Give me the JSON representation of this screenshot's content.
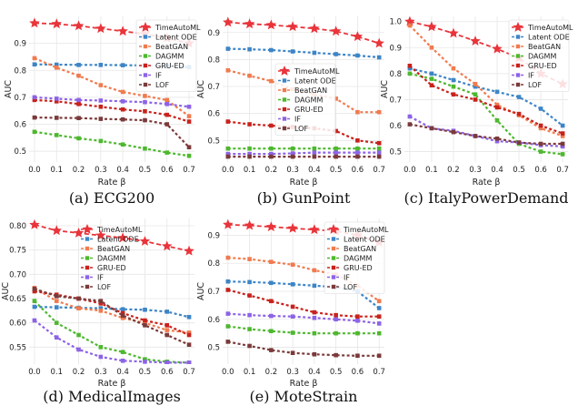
{
  "figure": {
    "colors": {
      "TimeAutoML": "#e8343a",
      "Latent ODE": "#3d85c6",
      "BeatGAN": "#f07b4f",
      "DAGMM": "#4db82e",
      "GRU-ED": "#c8221c",
      "IF": "#8c63e6",
      "LOF": "#7b3a3a"
    }
  },
  "chart_data": [
    {
      "type": "line",
      "caption": "(a) ECG200",
      "xlabel": "Rate β",
      "ylabel": "AUC",
      "x": [
        0.0,
        0.1,
        0.2,
        0.3,
        0.4,
        0.5,
        0.6,
        0.7
      ],
      "xticks": [
        "0.0",
        "0.1",
        "0.2",
        "0.3",
        "0.4",
        "0.5",
        "0.6",
        "0.7"
      ],
      "ylim": [
        0.46,
        1.0
      ],
      "yticks": [
        "0.5",
        "0.6",
        "0.7",
        "0.8",
        "0.9"
      ],
      "legend_position": "top-right",
      "series": [
        {
          "name": "TimeAutoML",
          "values": [
            0.975,
            0.972,
            0.965,
            0.955,
            0.945,
            0.935,
            0.92,
            0.9
          ]
        },
        {
          "name": "Latent ODE",
          "values": [
            0.822,
            0.821,
            0.82,
            0.82,
            0.819,
            0.818,
            0.815,
            0.812
          ]
        },
        {
          "name": "BeatGAN",
          "values": [
            0.845,
            0.81,
            0.78,
            0.745,
            0.72,
            0.705,
            0.69,
            0.63
          ]
        },
        {
          "name": "DAGMM",
          "values": [
            0.572,
            0.56,
            0.548,
            0.538,
            0.525,
            0.51,
            0.495,
            0.483
          ]
        },
        {
          "name": "GRU-ED",
          "values": [
            0.69,
            0.685,
            0.675,
            0.665,
            0.655,
            0.648,
            0.635,
            0.61
          ]
        },
        {
          "name": "IF",
          "values": [
            0.7,
            0.695,
            0.69,
            0.688,
            0.685,
            0.682,
            0.675,
            0.665
          ]
        },
        {
          "name": "LOF",
          "values": [
            0.625,
            0.624,
            0.623,
            0.62,
            0.618,
            0.615,
            0.6,
            0.515
          ]
        }
      ]
    },
    {
      "type": "line",
      "caption": "(b) GunPoint",
      "xlabel": "Rate β",
      "ylabel": "AUC",
      "x": [
        0.0,
        0.1,
        0.2,
        0.3,
        0.4,
        0.5,
        0.6,
        0.7
      ],
      "xticks": [
        "0.0",
        "0.1",
        "0.2",
        "0.3",
        "0.4",
        "0.5",
        "0.6",
        "0.7"
      ],
      "ylim": [
        0.42,
        0.96
      ],
      "yticks": [
        "0.5",
        "0.6",
        "0.7",
        "0.8",
        "0.9"
      ],
      "legend_position": "center-right",
      "series": [
        {
          "name": "TimeAutoML",
          "values": [
            0.938,
            0.932,
            0.928,
            0.922,
            0.915,
            0.905,
            0.885,
            0.86
          ]
        },
        {
          "name": "Latent ODE",
          "values": [
            0.84,
            0.838,
            0.835,
            0.83,
            0.825,
            0.82,
            0.815,
            0.808
          ]
        },
        {
          "name": "BeatGAN",
          "values": [
            0.76,
            0.74,
            0.72,
            0.69,
            0.67,
            0.655,
            0.605,
            0.605
          ]
        },
        {
          "name": "DAGMM",
          "values": [
            0.47,
            0.47,
            0.47,
            0.47,
            0.47,
            0.47,
            0.47,
            0.47
          ]
        },
        {
          "name": "GRU-ED",
          "values": [
            0.57,
            0.56,
            0.555,
            0.55,
            0.545,
            0.535,
            0.5,
            0.49
          ]
        },
        {
          "name": "IF",
          "values": [
            0.45,
            0.45,
            0.45,
            0.452,
            0.455,
            0.455,
            0.455,
            0.455
          ]
        },
        {
          "name": "LOF",
          "values": [
            0.44,
            0.44,
            0.44,
            0.44,
            0.44,
            0.44,
            0.44,
            0.44
          ]
        }
      ]
    },
    {
      "type": "line",
      "caption": "(c) ItalyPowerDemand",
      "xlabel": "Rate β",
      "ylabel": "AUC",
      "x": [
        0.0,
        0.1,
        0.2,
        0.3,
        0.4,
        0.5,
        0.6,
        0.7
      ],
      "xticks": [
        "0.0",
        "0.1",
        "0.2",
        "0.3",
        "0.4",
        "0.5",
        "0.6",
        "0.7"
      ],
      "ylim": [
        0.46,
        1.02
      ],
      "yticks": [
        "0.5",
        "0.6",
        "0.7",
        "0.8",
        "0.9",
        "1.0"
      ],
      "legend_position": "top-right",
      "series": [
        {
          "name": "TimeAutoML",
          "values": [
            1.0,
            0.98,
            0.955,
            0.925,
            0.895,
            0.86,
            0.8,
            0.76
          ]
        },
        {
          "name": "Latent ODE",
          "values": [
            0.82,
            0.8,
            0.775,
            0.75,
            0.73,
            0.71,
            0.665,
            0.6
          ]
        },
        {
          "name": "BeatGAN",
          "values": [
            0.985,
            0.9,
            0.82,
            0.76,
            0.68,
            0.64,
            0.59,
            0.56
          ]
        },
        {
          "name": "DAGMM",
          "values": [
            0.8,
            0.78,
            0.75,
            0.72,
            0.62,
            0.53,
            0.5,
            0.49
          ]
        },
        {
          "name": "GRU-ED",
          "values": [
            0.83,
            0.755,
            0.72,
            0.7,
            0.67,
            0.645,
            0.6,
            0.57
          ]
        },
        {
          "name": "IF",
          "values": [
            0.635,
            0.59,
            0.58,
            0.56,
            0.54,
            0.535,
            0.525,
            0.52
          ]
        },
        {
          "name": "LOF",
          "values": [
            0.605,
            0.59,
            0.575,
            0.56,
            0.55,
            0.535,
            0.53,
            0.53
          ]
        }
      ]
    },
    {
      "type": "line",
      "caption": "(d) MedicalImages",
      "xlabel": "Rate β",
      "ylabel": "AUC",
      "x": [
        0.0,
        0.1,
        0.2,
        0.3,
        0.4,
        0.5,
        0.6,
        0.7
      ],
      "xticks": [
        "0.0",
        "0.1",
        "0.2",
        "0.3",
        "0.4",
        "0.5",
        "0.6",
        "0.7"
      ],
      "ylim": [
        0.515,
        0.815
      ],
      "yticks": [
        "0.55",
        "0.60",
        "0.65",
        "0.70",
        "0.75",
        "0.80"
      ],
      "legend_position": "top-right",
      "series": [
        {
          "name": "TimeAutoML",
          "values": [
            0.802,
            0.79,
            0.785,
            0.78,
            0.775,
            0.768,
            0.758,
            0.748
          ]
        },
        {
          "name": "Latent ODE",
          "values": [
            0.633,
            0.632,
            0.631,
            0.63,
            0.628,
            0.627,
            0.623,
            0.612
          ]
        },
        {
          "name": "BeatGAN",
          "values": [
            0.672,
            0.645,
            0.63,
            0.625,
            0.61,
            0.6,
            0.585,
            0.58
          ]
        },
        {
          "name": "DAGMM",
          "values": [
            0.645,
            0.6,
            0.575,
            0.55,
            0.54,
            0.525,
            0.52,
            0.518
          ]
        },
        {
          "name": "GRU-ED",
          "values": [
            0.665,
            0.658,
            0.65,
            0.64,
            0.62,
            0.605,
            0.595,
            0.575
          ]
        },
        {
          "name": "IF",
          "values": [
            0.605,
            0.57,
            0.545,
            0.53,
            0.522,
            0.52,
            0.518,
            0.518
          ]
        },
        {
          "name": "LOF",
          "values": [
            0.67,
            0.655,
            0.65,
            0.645,
            0.615,
            0.595,
            0.575,
            0.555
          ]
        }
      ]
    },
    {
      "type": "line",
      "caption": "(e) MoteStrain",
      "xlabel": "Rate β",
      "ylabel": "AUC",
      "x": [
        0.0,
        0.1,
        0.2,
        0.3,
        0.4,
        0.5,
        0.6,
        0.7
      ],
      "xticks": [
        "0.0",
        "0.1",
        "0.2",
        "0.3",
        "0.4",
        "0.5",
        "0.6",
        "0.7"
      ],
      "ylim": [
        0.44,
        0.96
      ],
      "yticks": [
        "0.5",
        "0.6",
        "0.7",
        "0.8",
        "0.9"
      ],
      "legend_position": "top-right",
      "series": [
        {
          "name": "TimeAutoML",
          "values": [
            0.938,
            0.935,
            0.93,
            0.925,
            0.92,
            0.915,
            0.9,
            0.875
          ]
        },
        {
          "name": "Latent ODE",
          "values": [
            0.735,
            0.733,
            0.73,
            0.725,
            0.72,
            0.715,
            0.7,
            0.64
          ]
        },
        {
          "name": "BeatGAN",
          "values": [
            0.82,
            0.815,
            0.805,
            0.795,
            0.775,
            0.76,
            0.72,
            0.665
          ]
        },
        {
          "name": "DAGMM",
          "values": [
            0.575,
            0.565,
            0.558,
            0.552,
            0.55,
            0.55,
            0.55,
            0.55
          ]
        },
        {
          "name": "GRU-ED",
          "values": [
            0.705,
            0.685,
            0.665,
            0.645,
            0.625,
            0.615,
            0.61,
            0.61
          ]
        },
        {
          "name": "IF",
          "values": [
            0.62,
            0.615,
            0.612,
            0.61,
            0.605,
            0.6,
            0.595,
            0.585
          ]
        },
        {
          "name": "LOF",
          "values": [
            0.52,
            0.505,
            0.49,
            0.48,
            0.475,
            0.472,
            0.47,
            0.47
          ]
        }
      ]
    }
  ]
}
